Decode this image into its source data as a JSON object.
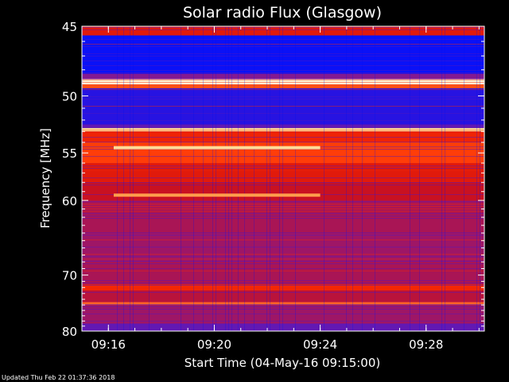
{
  "chart_data": {
    "type": "heatmap",
    "title": "Solar radio Flux (Glasgow)",
    "xlabel": "Start Time (04-May-16 09:15:00)",
    "ylabel": "Frequency [MHz]",
    "x_ticks": [
      "09:16",
      "09:20",
      "09:24",
      "09:28"
    ],
    "y_ticks": [
      45,
      50,
      55,
      60,
      70,
      80
    ],
    "x_range_minutes": [
      0,
      15.2
    ],
    "y_range_mhz": [
      45,
      80
    ],
    "y_scale": "reciprocal",
    "colormap": [
      "#000060",
      "#0010ff",
      "#7a1aa0",
      "#d41010",
      "#ff3000",
      "#ffd070",
      "#ffffff"
    ],
    "frequency_bands": [
      {
        "from": 45.0,
        "to": 45.6,
        "level": 0.55
      },
      {
        "from": 45.6,
        "to": 48.3,
        "level": 0.18
      },
      {
        "from": 48.3,
        "to": 48.7,
        "level": 0.35
      },
      {
        "from": 48.7,
        "to": 49.1,
        "level": 0.95
      },
      {
        "from": 49.1,
        "to": 49.4,
        "level": 0.7
      },
      {
        "from": 49.4,
        "to": 52.4,
        "level": 0.22
      },
      {
        "from": 52.4,
        "to": 52.7,
        "level": 0.3
      },
      {
        "from": 52.7,
        "to": 53.0,
        "level": 0.88
      },
      {
        "from": 53.0,
        "to": 54.0,
        "level": 0.6
      },
      {
        "from": 54.0,
        "to": 56.0,
        "level": 0.68
      },
      {
        "from": 56.0,
        "to": 58.0,
        "level": 0.55
      },
      {
        "from": 58.0,
        "to": 60.0,
        "level": 0.48
      },
      {
        "from": 60.0,
        "to": 64.0,
        "level": 0.42
      },
      {
        "from": 64.0,
        "to": 68.0,
        "level": 0.4
      },
      {
        "from": 68.0,
        "to": 71.5,
        "level": 0.42
      },
      {
        "from": 71.5,
        "to": 72.5,
        "level": 0.62
      },
      {
        "from": 72.5,
        "to": 74.5,
        "level": 0.45
      },
      {
        "from": 74.5,
        "to": 75.0,
        "level": 0.72
      },
      {
        "from": 75.0,
        "to": 78.5,
        "level": 0.4
      },
      {
        "from": 78.5,
        "to": 80.0,
        "level": 0.3
      }
    ],
    "bright_lines": [
      {
        "freq": 54.5,
        "t_from": 1.2,
        "t_to": 9.0,
        "level": 0.88
      },
      {
        "freq": 59.4,
        "t_from": 1.2,
        "t_to": 9.0,
        "level": 0.78
      }
    ],
    "grid": false,
    "legend": "none"
  },
  "footer": "Updated Thu Feb 22 01:37:36 2018"
}
